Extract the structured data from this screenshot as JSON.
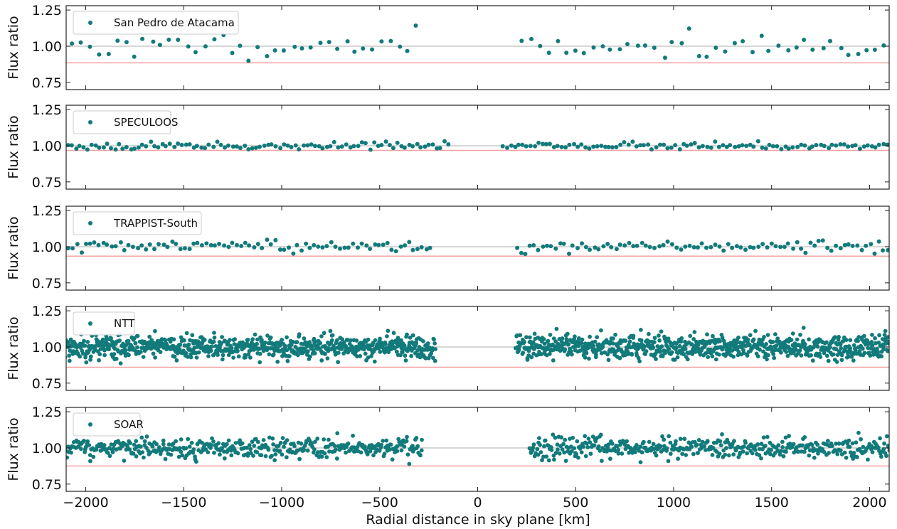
{
  "figure": {
    "xlabel": "Radial distance in sky plane [km]",
    "x_ticks": [
      -2000,
      -1500,
      -1000,
      -500,
      0,
      500,
      1000,
      1500,
      2000
    ],
    "x_tick_labels": [
      "−2000",
      "−1500",
      "−1000",
      "−500",
      "0",
      "500",
      "1000",
      "1500",
      "2000"
    ],
    "xlim": [
      -2100,
      2100
    ],
    "point_color": "#127a7a",
    "reference_line_color": "#c8c8c8",
    "threshold_line_color": "#f4a0a0"
  },
  "chart_data": [
    {
      "type": "scatter",
      "legend": "San Pedro de Atacama",
      "ylabel": "Flux ratio",
      "ylim": [
        0.7,
        1.28
      ],
      "y_ticks": [
        0.75,
        1.0,
        1.25
      ],
      "y_tick_labels": [
        "0.75",
        "1.00",
        "1.25"
      ],
      "reference_y": 1.0,
      "threshold_y": 0.885,
      "gap_km": [
        -270,
        200
      ],
      "sampling_km": 45,
      "noise_sd": 0.04,
      "approx_points": 80,
      "seed": 11,
      "legend_location": "upper left",
      "grid": false
    },
    {
      "type": "scatter",
      "legend": "SPECULOOS",
      "ylabel": "Flux ratio",
      "ylim": [
        0.7,
        1.28
      ],
      "y_ticks": [
        0.75,
        1.0,
        1.25
      ],
      "y_tick_labels": [
        "0.75",
        "1.00",
        "1.25"
      ],
      "reference_y": 1.0,
      "threshold_y": 0.968,
      "gap_km": [
        -140,
        130
      ],
      "sampling_km": 20,
      "noise_sd": 0.012,
      "approx_points": 200,
      "seed": 23,
      "legend_location": "upper left",
      "grid": false
    },
    {
      "type": "scatter",
      "legend": "TRAPPIST-South",
      "ylabel": "Flux ratio",
      "ylim": [
        0.7,
        1.28
      ],
      "y_ticks": [
        0.75,
        1.0,
        1.25
      ],
      "y_tick_labels": [
        "0.75",
        "1.00",
        "1.25"
      ],
      "reference_y": 1.0,
      "threshold_y": 0.935,
      "gap_km": [
        -220,
        190
      ],
      "sampling_km": 22,
      "noise_sd": 0.02,
      "approx_points": 175,
      "seed": 37,
      "legend_location": "upper left",
      "grid": false
    },
    {
      "type": "scatter",
      "legend": "NTT",
      "ylabel": "Flux ratio",
      "ylim": [
        0.7,
        1.28
      ],
      "y_ticks": [
        0.75,
        1.0,
        1.25
      ],
      "y_tick_labels": [
        "0.75",
        "1.00",
        "1.25"
      ],
      "reference_y": 1.0,
      "threshold_y": 0.86,
      "gap_km": [
        -215,
        195
      ],
      "sampling_km": 2.5,
      "noise_sd": 0.04,
      "approx_points": 1500,
      "seed": 53,
      "legend_location": "upper left",
      "grid": false
    },
    {
      "type": "scatter",
      "legend": "SOAR",
      "ylabel": "Flux ratio",
      "ylim": [
        0.7,
        1.28
      ],
      "y_ticks": [
        0.75,
        1.0,
        1.25
      ],
      "y_tick_labels": [
        "0.75",
        "1.00",
        "1.25"
      ],
      "reference_y": 1.0,
      "threshold_y": 0.875,
      "gap_km": [
        -280,
        265
      ],
      "sampling_km": 4.5,
      "noise_sd": 0.035,
      "approx_points": 800,
      "seed": 71,
      "legend_location": "upper left",
      "grid": false
    }
  ]
}
